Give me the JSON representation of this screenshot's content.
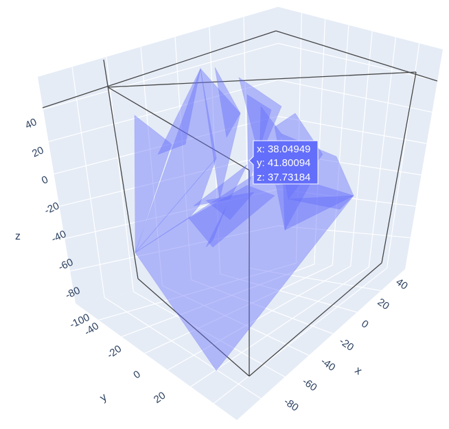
{
  "chart_data": {
    "type": "mesh3d",
    "title": "",
    "mesh_color": "#636efa",
    "mesh_opacity": 0.5,
    "background_color": "#e5ecf6",
    "grid_color": "#ffffff",
    "axes": {
      "x": {
        "title": "x",
        "range": [
          -90,
          50
        ],
        "ticks": [
          -80,
          -60,
          -40,
          -20,
          0,
          20,
          40
        ]
      },
      "y": {
        "title": "y",
        "range": [
          -60,
          35
        ],
        "ticks": [
          -40,
          -20,
          0,
          20
        ]
      },
      "z": {
        "title": "z",
        "range": [
          -100,
          50
        ],
        "ticks": [
          40,
          20,
          0,
          -20,
          -40,
          -60,
          -80,
          -100
        ]
      }
    },
    "hover": {
      "x": "38.04949",
      "y": "41.80094",
      "z": "37.73184"
    }
  },
  "hover_lines": [
    "x: 38.04949",
    "y: 41.80094",
    "z: 37.73184"
  ]
}
